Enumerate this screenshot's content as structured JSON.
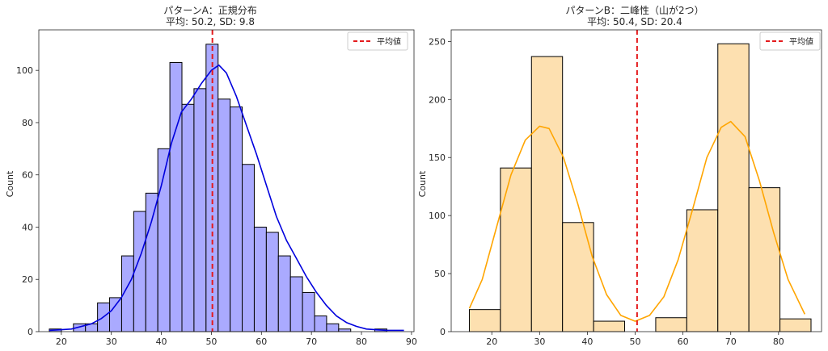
{
  "chart_data": [
    {
      "type": "bar",
      "title": "パターンA：正規分布",
      "subtitle": "平均: 50.2, SD: 9.8",
      "xlabel": "",
      "ylabel": "Count",
      "xlim": [
        15.5,
        90.5
      ],
      "ylim": [
        0,
        115.5
      ],
      "xticks": [
        20,
        30,
        40,
        50,
        60,
        70,
        80,
        90
      ],
      "yticks": [
        0,
        20,
        40,
        60,
        80,
        100
      ],
      "bin_width": 2.41,
      "bin_start": 17.6,
      "values": [
        1,
        0,
        3,
        3,
        11,
        13,
        29,
        46,
        53,
        70,
        103,
        87,
        93,
        110,
        89,
        86,
        64,
        40,
        38,
        29,
        21,
        15,
        6,
        3,
        1,
        0,
        0,
        1
      ],
      "bar_color": "#aaaaff",
      "edge_color": "#000000",
      "kde": {
        "color": "#0000dd",
        "x": [
          17.6,
          22,
          26,
          28,
          30,
          32,
          34,
          36,
          38,
          40,
          42,
          44,
          46,
          48,
          50,
          51.5,
          53,
          55,
          57,
          59,
          61,
          63,
          65,
          67,
          69,
          71,
          73,
          75,
          77,
          79,
          81,
          85,
          88.5
        ],
        "y": [
          0.5,
          1,
          3,
          5,
          8,
          13,
          20,
          30,
          42,
          56,
          72,
          84,
          89,
          95,
          100,
          102,
          99,
          90,
          79,
          68,
          56,
          44,
          35,
          28,
          21,
          15,
          10,
          6,
          3.5,
          2,
          1,
          0.5,
          0.5
        ]
      },
      "mean_line": {
        "x": 50.2,
        "color": "#e41a1c",
        "label": "平均値"
      }
    },
    {
      "type": "bar",
      "title": "パターンB：二峰性（山が2つ）",
      "subtitle": "平均: 50.4, SD: 20.4",
      "xlabel": "",
      "ylabel": "Count",
      "xlim": [
        11.5,
        89
      ],
      "ylim": [
        0,
        260
      ],
      "xticks": [
        20,
        30,
        40,
        50,
        60,
        70,
        80
      ],
      "yticks": [
        0,
        50,
        100,
        150,
        200,
        250
      ],
      "bin_width": 6.5,
      "bin_start": 15.3,
      "values": [
        19,
        141,
        237,
        94,
        9,
        0,
        12,
        105,
        248,
        124,
        11
      ],
      "bar_color": "#fde0b0",
      "edge_color": "#000000",
      "kde": {
        "color": "#ffa500",
        "x": [
          15.3,
          18,
          21,
          24,
          27,
          30,
          32,
          35,
          38,
          41,
          44,
          47,
          50,
          53,
          56,
          59,
          62,
          65,
          68,
          70,
          73,
          76,
          79,
          82,
          85.5
        ],
        "y": [
          20,
          45,
          90,
          135,
          165,
          177,
          175,
          150,
          110,
          65,
          32,
          14,
          9,
          14,
          30,
          62,
          105,
          150,
          176,
          181,
          168,
          130,
          85,
          45,
          15
        ]
      },
      "mean_line": {
        "x": 50.4,
        "color": "#e41a1c",
        "label": "平均値"
      }
    }
  ]
}
